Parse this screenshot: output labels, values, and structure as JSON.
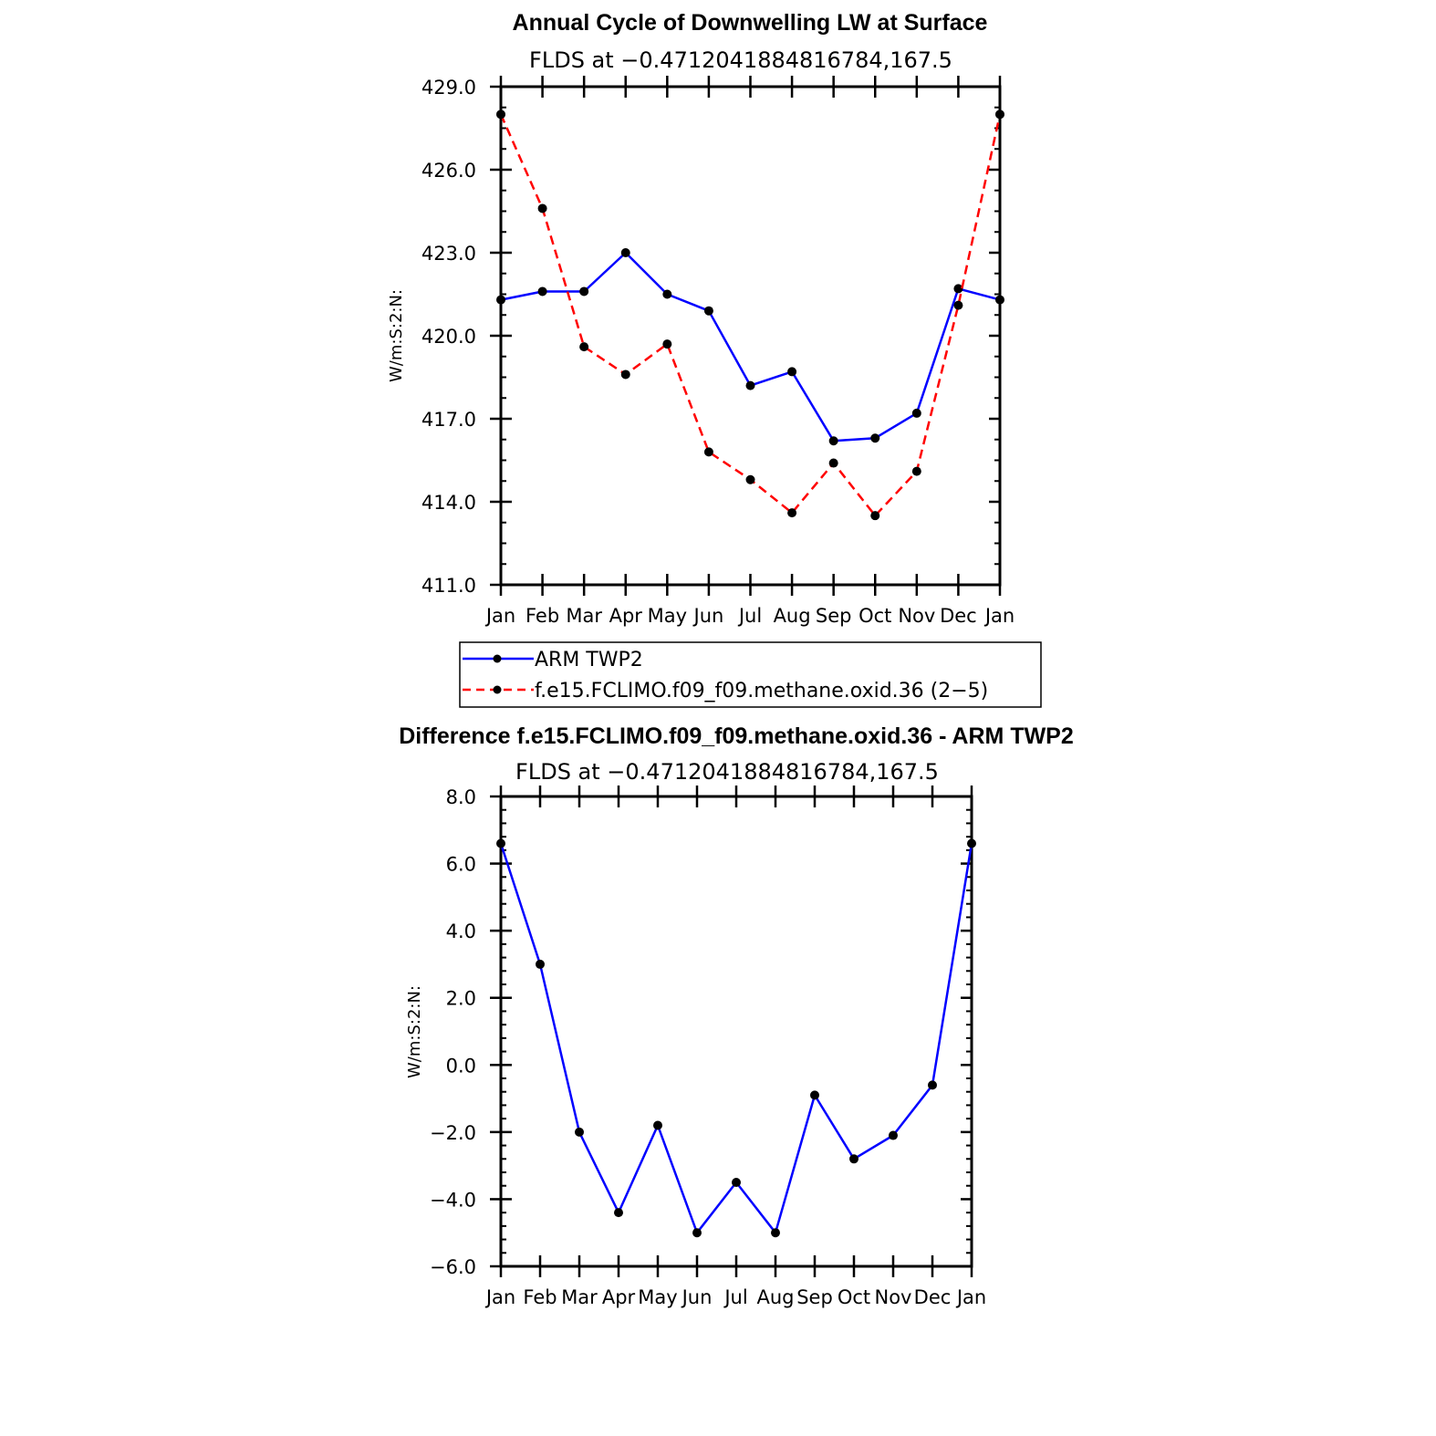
{
  "chart_data": [
    {
      "type": "line",
      "title": "Annual Cycle of Downwelling LW at Surface",
      "subtitle": "FLDS at −0.4712041884816784,167.5",
      "xlabel": "",
      "ylabel": "W/m:S:2:N:",
      "categories": [
        "Jan",
        "Feb",
        "Mar",
        "Apr",
        "May",
        "Jun",
        "Jul",
        "Aug",
        "Sep",
        "Oct",
        "Nov",
        "Dec",
        "Jan"
      ],
      "ylim": [
        411.0,
        429.0
      ],
      "yticks": [
        "411.0",
        "414.0",
        "417.0",
        "420.0",
        "423.0",
        "426.0",
        "429.0"
      ],
      "grid": false,
      "legend_position": "bottom",
      "series": [
        {
          "name": "ARM TWP2",
          "color": "#0000ff",
          "dash": "solid",
          "values": [
            421.3,
            421.6,
            421.6,
            423.0,
            421.5,
            420.9,
            418.2,
            418.7,
            416.2,
            416.3,
            417.2,
            421.7,
            421.3
          ]
        },
        {
          "name": "f.e15.FCLIMO.f09_f09.methane.oxid.36 (2−5)",
          "color": "#ff0000",
          "dash": "dashed",
          "values": [
            428.0,
            424.6,
            419.6,
            418.6,
            419.7,
            415.8,
            414.8,
            413.6,
            415.4,
            413.5,
            415.1,
            421.1,
            428.0
          ]
        }
      ]
    },
    {
      "type": "line",
      "title": "Difference f.e15.FCLIMO.f09_f09.methane.oxid.36 - ARM TWP2",
      "subtitle": "FLDS at −0.4712041884816784,167.5",
      "xlabel": "",
      "ylabel": "W/m:S:2:N:",
      "categories": [
        "Jan",
        "Feb",
        "Mar",
        "Apr",
        "May",
        "Jun",
        "Jul",
        "Aug",
        "Sep",
        "Oct",
        "Nov",
        "Dec",
        "Jan"
      ],
      "ylim": [
        -6.0,
        8.0
      ],
      "yticks": [
        "−6.0",
        "−4.0",
        "−2.0",
        "0.0",
        "2.0",
        "4.0",
        "6.0",
        "8.0"
      ],
      "grid": false,
      "series": [
        {
          "color": "#0000ff",
          "dash": "solid",
          "values": [
            6.6,
            3.0,
            -2.0,
            -4.4,
            -1.8,
            -5.0,
            -3.5,
            -5.0,
            -0.9,
            -2.8,
            -2.1,
            -0.6,
            6.6
          ]
        }
      ]
    }
  ]
}
